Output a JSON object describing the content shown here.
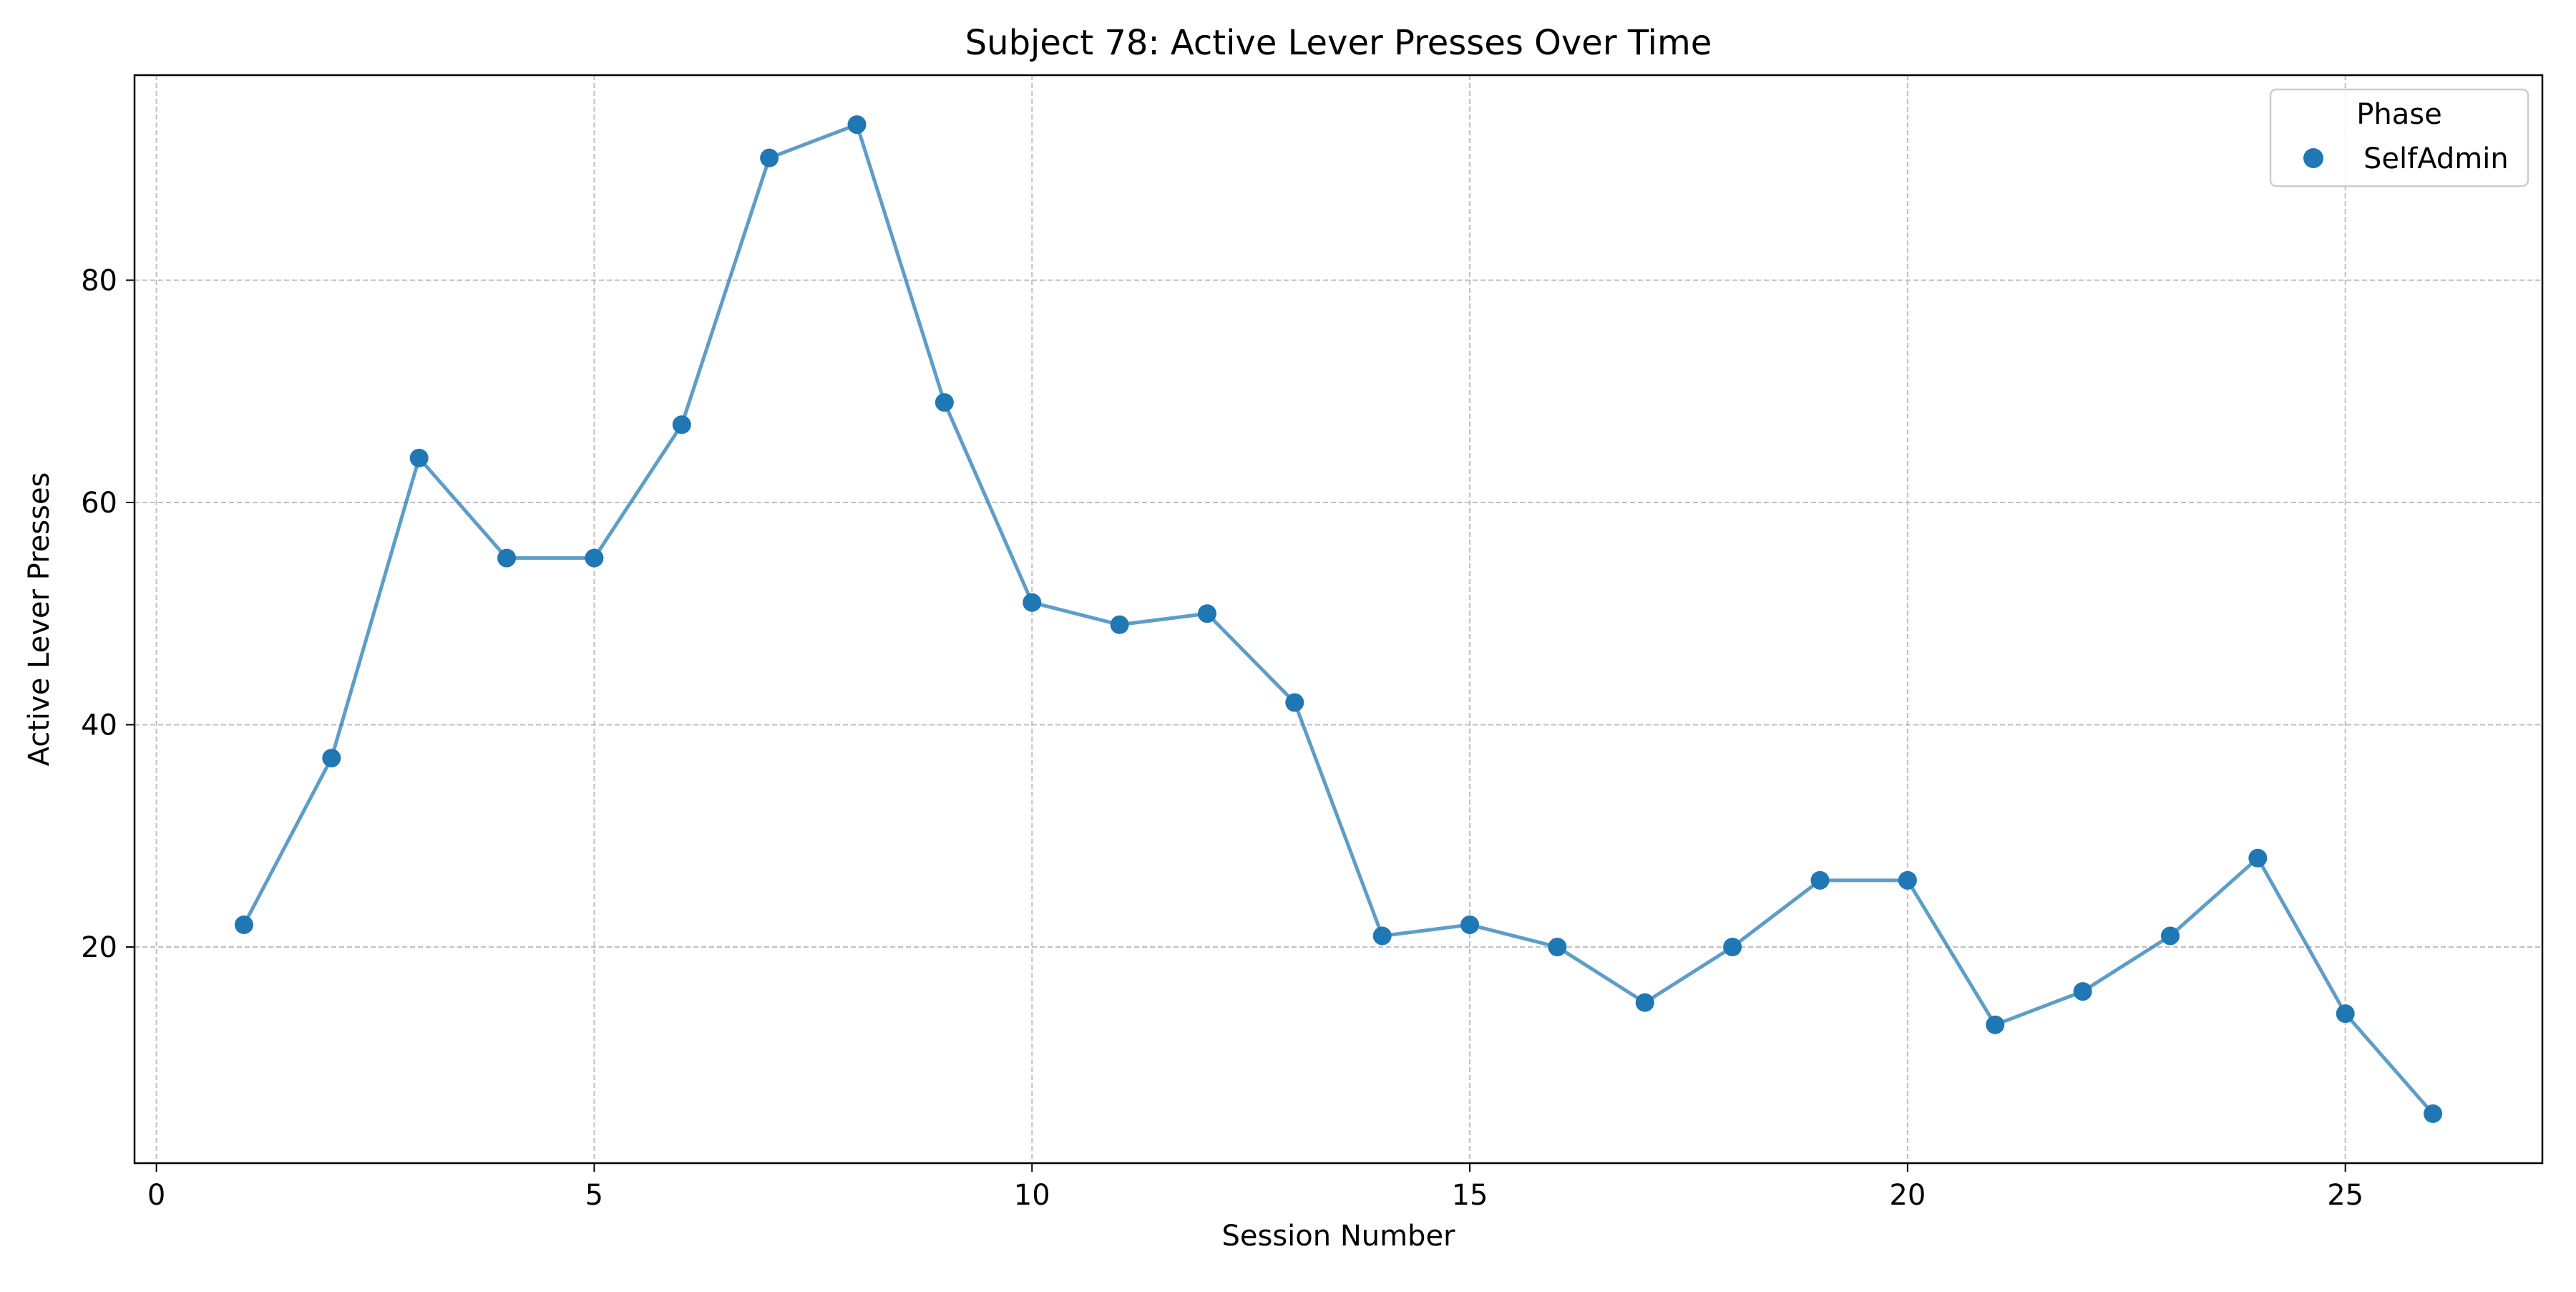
{
  "chart_data": {
    "type": "line",
    "title": "Subject 78: Active Lever Presses Over Time",
    "xlabel": "Session Number",
    "ylabel": "Active Lever Presses",
    "xlim": [
      -0.25,
      27.25
    ],
    "ylim": [
      0.55,
      98.45
    ],
    "x_ticks": [
      0,
      5,
      10,
      15,
      20,
      25
    ],
    "y_ticks": [
      20,
      40,
      60,
      80
    ],
    "grid": true,
    "legend": {
      "title": "Phase",
      "placement": "top-right"
    },
    "series": [
      {
        "name": "SelfAdmin",
        "color": "#1f77b4",
        "x": [
          1,
          2,
          3,
          4,
          5,
          6,
          7,
          8,
          9,
          10,
          11,
          12,
          13,
          14,
          15,
          16,
          17,
          18,
          19,
          20,
          21,
          22,
          23,
          24,
          25,
          26
        ],
        "values": [
          22,
          37,
          64,
          55,
          55,
          67,
          91,
          94,
          69,
          51,
          49,
          50,
          42,
          21,
          22,
          20,
          15,
          20,
          26,
          26,
          13,
          16,
          21,
          28,
          14,
          5
        ]
      }
    ]
  }
}
